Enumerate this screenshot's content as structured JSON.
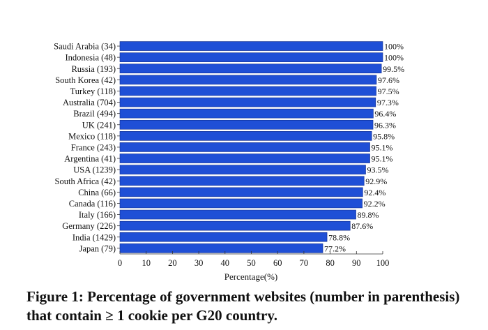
{
  "chart_data": {
    "type": "bar",
    "orientation": "horizontal",
    "categories": [
      "Saudi Arabia (34)",
      "Indonesia (48)",
      "Russia (193)",
      "South Korea (42)",
      "Turkey (118)",
      "Australia (704)",
      "Brazil (494)",
      "UK (241)",
      "Mexico (118)",
      "France (243)",
      "Argentina (41)",
      "USA (1239)",
      "South Africa (42)",
      "China (66)",
      "Canada (116)",
      "Italy (166)",
      "Germany (226)",
      "India (1429)",
      "Japan (79)"
    ],
    "values": [
      100,
      100,
      99.5,
      97.6,
      97.5,
      97.3,
      96.4,
      96.3,
      95.8,
      95.1,
      95.1,
      93.5,
      92.9,
      92.4,
      92.2,
      89.8,
      87.6,
      78.8,
      77.2
    ],
    "data_labels": [
      "100%",
      "100%",
      "99.5%",
      "97.6%",
      "97.5%",
      "97.3%",
      "96.4%",
      "96.3%",
      "95.8%",
      "95.1%",
      "95.1%",
      "93.5%",
      "92.9%",
      "92.4%",
      "92.2%",
      "89.8%",
      "87.6%",
      "78.8%",
      "77.2%"
    ],
    "xlabel": "Percentage(%)",
    "xlim": [
      0,
      100
    ],
    "xticks": [
      0,
      10,
      20,
      30,
      40,
      50,
      60,
      70,
      80,
      90,
      100
    ],
    "grid": false,
    "bar_color": "#1f4fd6",
    "bar_edge_color": "#0d2a8a"
  },
  "caption": "Figure 1: Percentage of government websites (number in parenthesis) that contain ≥ 1 cookie per G20 country."
}
